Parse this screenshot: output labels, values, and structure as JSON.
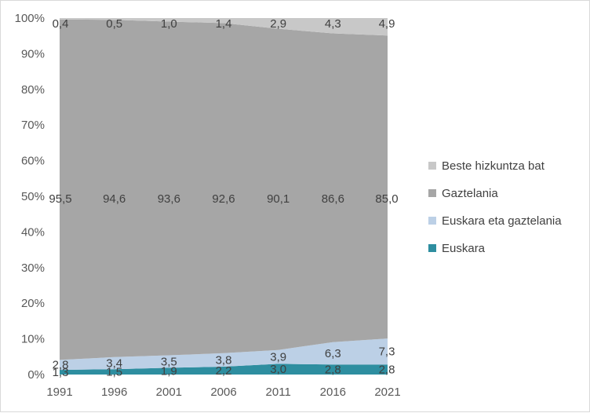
{
  "chart_data": {
    "type": "area",
    "stacked": "percent",
    "title": "",
    "xlabel": "",
    "ylabel": "",
    "ylim": [
      0,
      100
    ],
    "y_ticks": [
      "0%",
      "10%",
      "20%",
      "30%",
      "40%",
      "50%",
      "60%",
      "70%",
      "80%",
      "90%",
      "100%"
    ],
    "categories": [
      "1991",
      "1996",
      "2001",
      "2006",
      "2011",
      "2016",
      "2021"
    ],
    "series": [
      {
        "name": "Euskara",
        "color": "#2e8ea0",
        "values": [
          1.3,
          1.5,
          1.9,
          2.2,
          3.0,
          2.8,
          2.8
        ],
        "labels": [
          "1,3",
          "1,5",
          "1,9",
          "2,2",
          "3,0",
          "2,8",
          "2,8"
        ]
      },
      {
        "name": "Euskara eta gaztelania",
        "color": "#bcd0e6",
        "values": [
          2.8,
          3.4,
          3.5,
          3.8,
          3.9,
          6.3,
          7.3
        ],
        "labels": [
          "2,8",
          "3,4",
          "3,5",
          "3,8",
          "3,9",
          "6,3",
          "7,3"
        ]
      },
      {
        "name": "Gaztelania",
        "color": "#a6a6a6",
        "values": [
          95.5,
          94.6,
          93.6,
          92.6,
          90.1,
          86.6,
          85.0
        ],
        "labels": [
          "95,5",
          "94,6",
          "93,6",
          "92,6",
          "90,1",
          "86,6",
          "85,0"
        ]
      },
      {
        "name": "Beste hizkuntza bat",
        "color": "#c8c8c8",
        "values": [
          0.4,
          0.5,
          1.0,
          1.4,
          2.9,
          4.3,
          4.9
        ],
        "labels": [
          "0,4",
          "0,5",
          "1,0",
          "1,4",
          "2,9",
          "4,3",
          "4,9"
        ]
      }
    ],
    "legend": {
      "position": "right",
      "entries": [
        "Beste hizkuntza bat",
        "Gaztelania",
        "Euskara eta gaztelania",
        "Euskara"
      ]
    },
    "grid": false
  }
}
